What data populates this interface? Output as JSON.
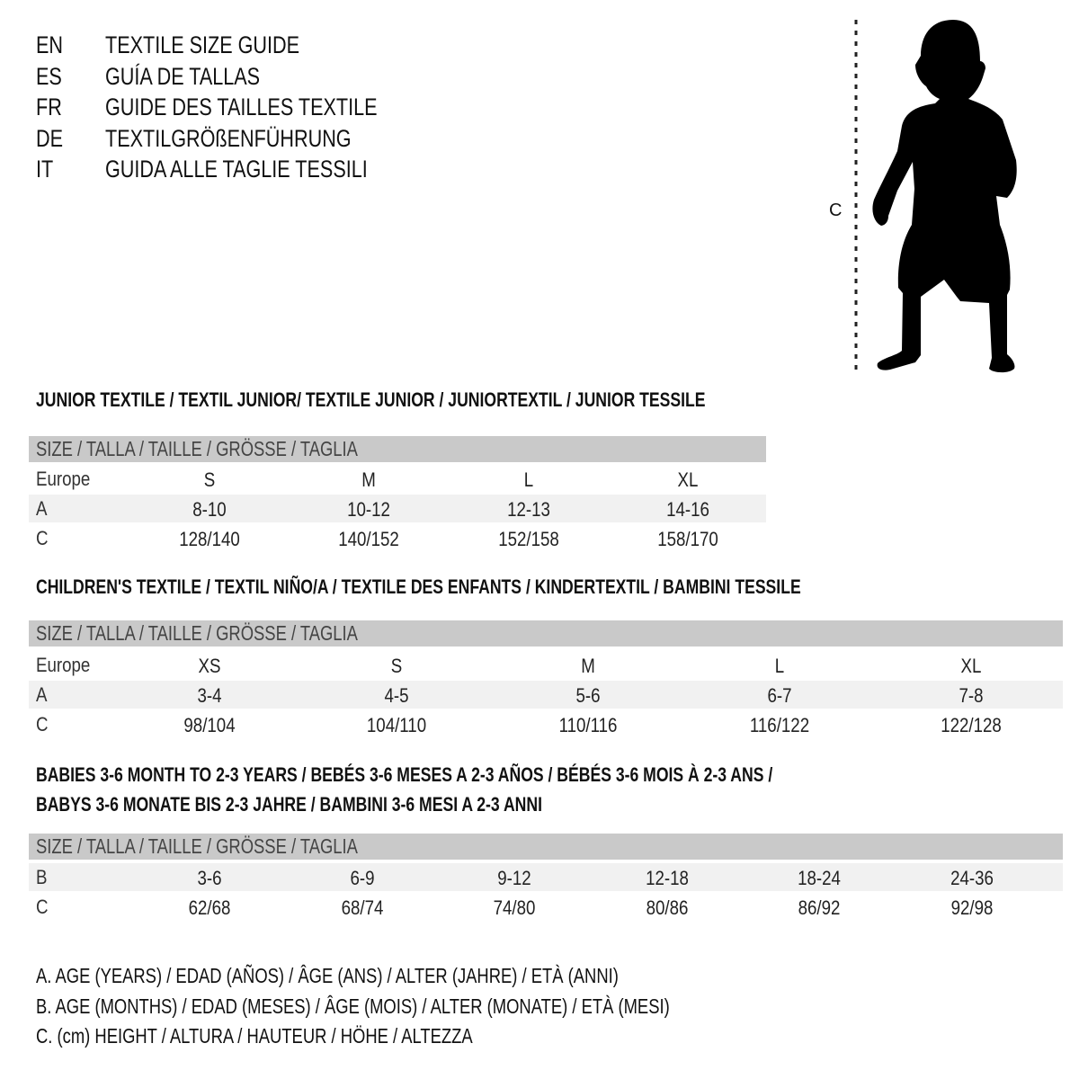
{
  "languages": [
    {
      "code": "EN",
      "title": "TEXTILE SIZE GUIDE"
    },
    {
      "code": "ES",
      "title": "GUÍA DE TALLAS"
    },
    {
      "code": "FR",
      "title": "GUIDE DES TAILLES TEXTILE"
    },
    {
      "code": "DE",
      "title": "TEXTILGRÖßENFÜHRUNG"
    },
    {
      "code": "IT",
      "title": "GUIDA ALLE TAGLIE TESSILI"
    }
  ],
  "figure": {
    "measure_label": "C",
    "icon": "child-silhouette"
  },
  "colors": {
    "header_bar": "#c9c9c9",
    "row_shade": "#f1f1f1"
  },
  "sections": [
    {
      "heading": [
        "JUNIOR TEXTILE / TEXTIL JUNIOR/ TEXTILE JUNIOR / JUNIORTEXTIL / JUNIOR TESSILE"
      ],
      "bar": "SIZE / TALLA / TAILLE / GRÖSSE / TAGLIA",
      "rows": [
        {
          "label": "Europe",
          "cells": [
            "S",
            "M",
            "L",
            "XL"
          ]
        },
        {
          "label": "A",
          "cells": [
            "8-10",
            "10-12",
            "12-13",
            "14-16"
          ]
        },
        {
          "label": "C",
          "cells": [
            "128/140",
            "140/152",
            "152/158",
            "158/170"
          ]
        }
      ]
    },
    {
      "heading": [
        "CHILDREN'S TEXTILE / TEXTIL NIÑO/A / TEXTILE DES ENFANTS / KINDERTEXTIL / BAMBINI TESSILE"
      ],
      "bar": "SIZE / TALLA / TAILLE / GRÖSSE / TAGLIA",
      "rows": [
        {
          "label": "Europe",
          "cells": [
            "XS",
            "S",
            "M",
            "L",
            "XL"
          ]
        },
        {
          "label": "A",
          "cells": [
            "3-4",
            "4-5",
            "5-6",
            "6-7",
            "7-8"
          ]
        },
        {
          "label": "C",
          "cells": [
            "98/104",
            "104/110",
            "110/116",
            "116/122",
            "122/128"
          ]
        }
      ]
    },
    {
      "heading": [
        "BABIES 3-6 MONTH TO 2-3 YEARS / BEBÉS 3-6 MESES A 2-3 AÑOS / BÉBÉS 3-6 MOIS À 2-3 ANS /",
        "BABYS 3-6 MONATE BIS 2-3 JAHRE / BAMBINI 3-6 MESI A 2-3 ANNI"
      ],
      "bar": "SIZE / TALLA / TAILLE / GRÖSSE / TAGLIA",
      "rows": [
        {
          "label": "B",
          "cells": [
            "3-6",
            "6-9",
            "9-12",
            "12-18",
            "18-24",
            "24-36"
          ]
        },
        {
          "label": "C",
          "cells": [
            "62/68",
            "68/74",
            "74/80",
            "80/86",
            "86/92",
            "92/98"
          ]
        }
      ]
    }
  ],
  "legend": [
    "A. AGE (YEARS) / EDAD (AÑOS) / ÂGE (ANS) / ALTER (JAHRE) / ETÀ (ANNI)",
    "B. AGE (MONTHS) / EDAD (MESES) / ÂGE (MOIS) / ALTER (MONATE) / ETÀ (MESI)",
    "C. (cm) HEIGHT / ALTURA / HAUTEUR / HÖHE / ALTEZZA"
  ]
}
